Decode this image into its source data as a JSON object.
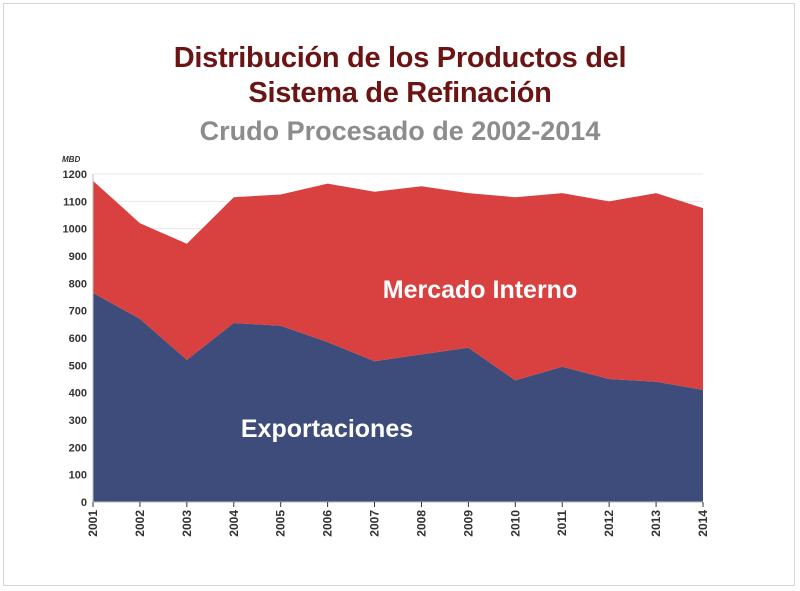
{
  "chart_data": {
    "type": "area",
    "stacked": true,
    "title": "Distribución de los Productos del Sistema de Refinación",
    "title_lines": [
      "Distribución de los Productos del",
      "Sistema de Refinación"
    ],
    "subtitle": "Crudo Procesado de 2002-2014",
    "ylabel": "MBD",
    "xlabel": "",
    "ylim": [
      0,
      1200
    ],
    "yticks": [
      0,
      100,
      200,
      300,
      400,
      500,
      600,
      700,
      800,
      900,
      1000,
      1100,
      1200
    ],
    "categories": [
      "2001",
      "2002",
      "2003",
      "2004",
      "2005",
      "2006",
      "2007",
      "2008",
      "2009",
      "2010",
      "2011",
      "2012",
      "2013",
      "2014"
    ],
    "grid": true,
    "legend": "inline labels on areas",
    "series": [
      {
        "name": "Exportaciones",
        "color": "#3d4c7a",
        "values": [
          765,
          670,
          520,
          655,
          645,
          585,
          515,
          540,
          565,
          445,
          495,
          450,
          440,
          410
        ]
      },
      {
        "name": "Mercado Interno",
        "color": "#d94040",
        "values": [
          410,
          350,
          425,
          460,
          480,
          580,
          620,
          615,
          565,
          670,
          635,
          650,
          690,
          665
        ]
      }
    ]
  },
  "colors": {
    "title": "#6b1414",
    "subtitle": "#8c8c8c"
  }
}
